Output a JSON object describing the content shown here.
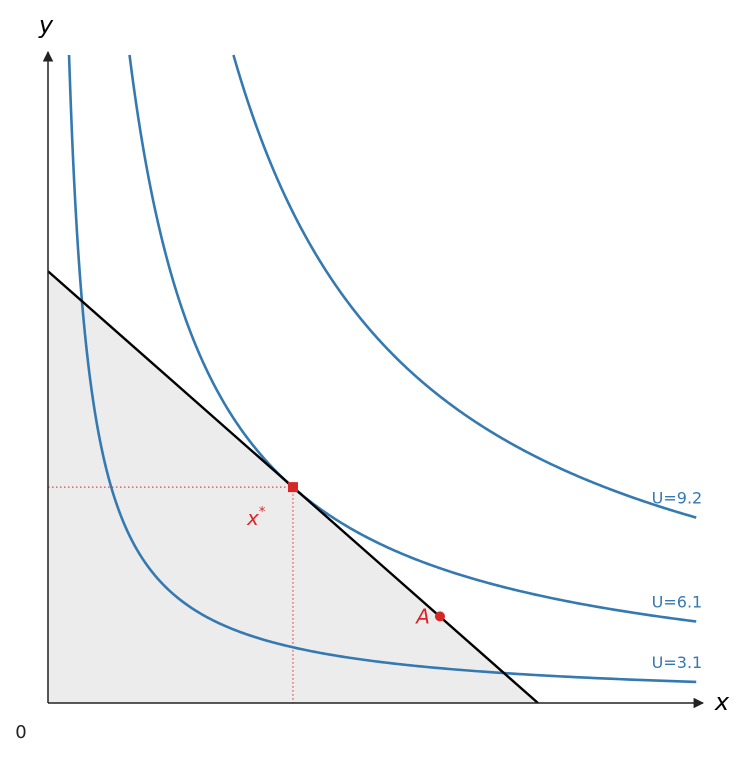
{
  "chart_data": {
    "type": "indifference",
    "x_label": "x",
    "y_label": "y",
    "origin_label": "0",
    "xlim": [
      0,
      17.3
    ],
    "ylim": [
      0,
      17.2
    ],
    "budget": {
      "x_intercept": 13,
      "y_intercept": 11.46,
      "color": "#000000",
      "fill": "#ececec"
    },
    "series": [
      {
        "name": "U=9.2",
        "level": 9.2,
        "color": "#3579b1"
      },
      {
        "name": "U=6.1",
        "level": 6.1,
        "color": "#3579b1"
      },
      {
        "name": "U=3.1",
        "level": 3.1,
        "color": "#3579b1"
      }
    ],
    "optimum": {
      "label": "x",
      "sup": "*",
      "x": 6.5,
      "y": 5.73,
      "color": "#d62728"
    },
    "point": {
      "label": "A",
      "x": 10.4,
      "y": 2.3,
      "color": "#d62728"
    }
  }
}
